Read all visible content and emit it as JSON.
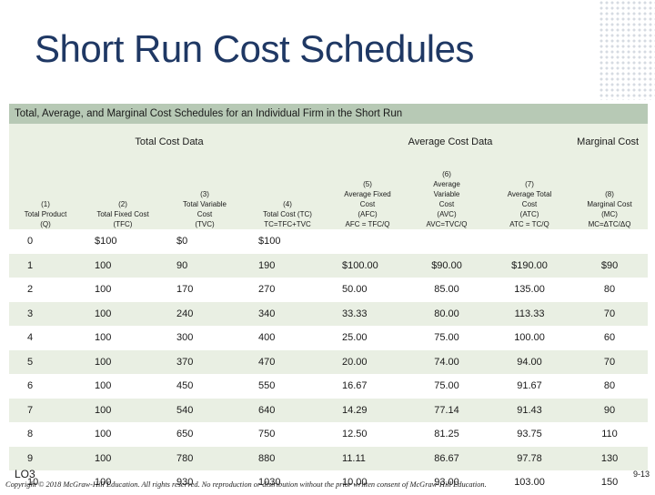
{
  "slide_title": "Short Run Cost Schedules",
  "banner": "Total, Average, and Marginal Cost Schedules for an Individual Firm in the Short Run",
  "groups": {
    "total": "Total Cost Data",
    "average": "Average Cost Data",
    "marginal": "Marginal Cost"
  },
  "columns": [
    [
      "(1)",
      "Total Product",
      "(Q)"
    ],
    [
      "(2)",
      "Total Fixed Cost",
      "(TFC)"
    ],
    [
      "(3)",
      "Total Variable",
      "Cost",
      "(TVC)"
    ],
    [
      "(4)",
      "Total Cost (TC)",
      "TC=TFC+TVC"
    ],
    [
      "(5)",
      "Average Fixed",
      "Cost",
      "(AFC)",
      "AFC = TFC/Q"
    ],
    [
      "(6)",
      "Average",
      "Variable",
      "Cost",
      "(AVC)",
      "AVC=TVC/Q"
    ],
    [
      "(7)",
      "Average Total",
      "Cost",
      "(ATC)",
      "ATC = TC/Q"
    ],
    [
      "(8)",
      "Marginal Cost",
      "(MC)",
      "MC=ΔTC/ΔQ"
    ]
  ],
  "rows": [
    [
      "0",
      "$100",
      "$0",
      "$100",
      "",
      "",
      "",
      ""
    ],
    [
      "1",
      "100",
      "90",
      "190",
      "$100.00",
      "$90.00",
      "$190.00",
      "$90"
    ],
    [
      "2",
      "100",
      "170",
      "270",
      "50.00",
      "85.00",
      "135.00",
      "80"
    ],
    [
      "3",
      "100",
      "240",
      "340",
      "33.33",
      "80.00",
      "113.33",
      "70"
    ],
    [
      "4",
      "100",
      "300",
      "400",
      "25.00",
      "75.00",
      "100.00",
      "60"
    ],
    [
      "5",
      "100",
      "370",
      "470",
      "20.00",
      "74.00",
      "94.00",
      "70"
    ],
    [
      "6",
      "100",
      "450",
      "550",
      "16.67",
      "75.00",
      "91.67",
      "80"
    ],
    [
      "7",
      "100",
      "540",
      "640",
      "14.29",
      "77.14",
      "91.43",
      "90"
    ],
    [
      "8",
      "100",
      "650",
      "750",
      "12.50",
      "81.25",
      "93.75",
      "110"
    ],
    [
      "9",
      "100",
      "780",
      "880",
      "11.11",
      "86.67",
      "97.78",
      "130"
    ],
    [
      "10",
      "100",
      "930",
      "1030",
      "10.00",
      "93.00",
      "103.00",
      "150"
    ]
  ],
  "footer": {
    "lo": "LO3",
    "copyright": "Copyright © 2018 McGraw-Hill Education. All rights reserved. No reproduction or distribution without the prior written consent of McGraw-Hill Education.",
    "page": "9-13"
  }
}
